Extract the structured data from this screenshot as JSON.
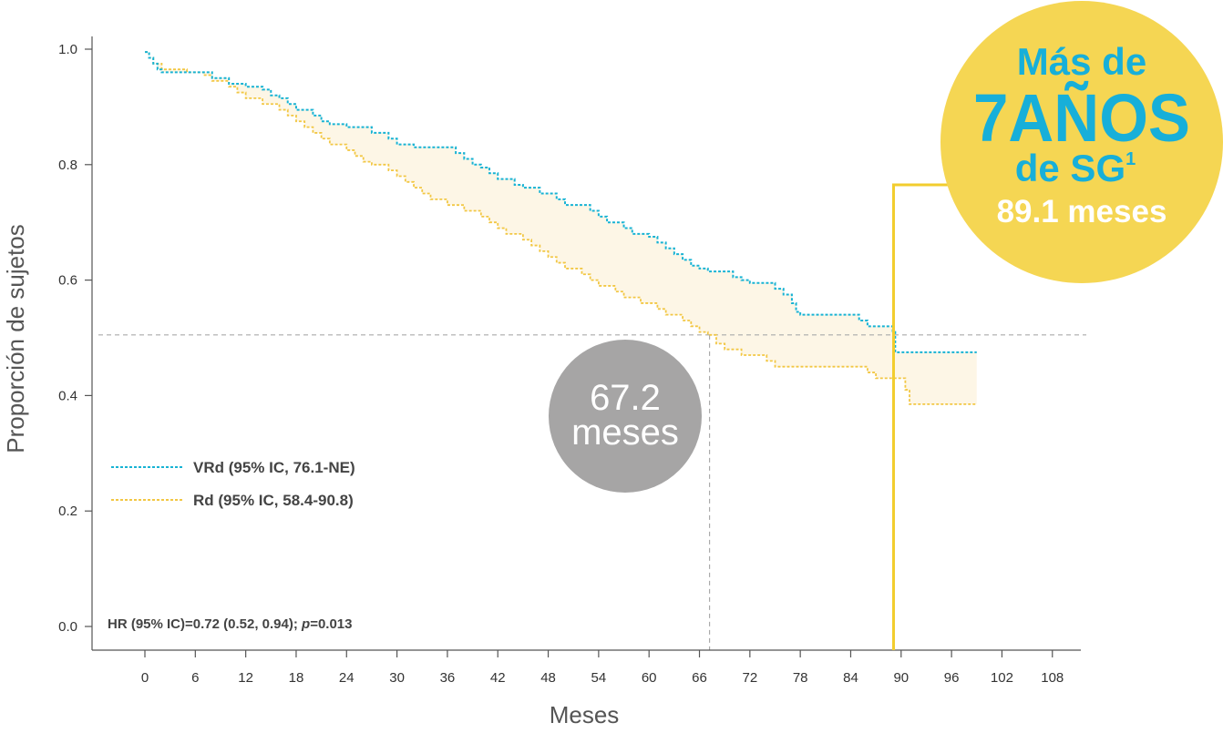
{
  "colors": {
    "vrd": "#18b3d4",
    "rd": "#f2c744",
    "band": "#fdf6e6",
    "median_line": "#aaaaaa",
    "yellow_bracket": "#f2cd2e",
    "grey_bubble": "#a6a5a5",
    "yellow_bubble": "#f5d653",
    "callout_text": "#17afd9",
    "axis": "#555555"
  },
  "chart_data": {
    "type": "line",
    "title": "",
    "xlabel": "Meses",
    "ylabel": "Proporción de sujetos",
    "xlim": [
      -5,
      110
    ],
    "ylim": [
      -0.04,
      1.04
    ],
    "xticks": [
      0,
      6,
      12,
      18,
      24,
      30,
      36,
      42,
      48,
      54,
      60,
      66,
      72,
      78,
      84,
      90,
      96,
      102,
      108
    ],
    "xtick_labels": [
      "0",
      "6",
      "12",
      "18",
      "24",
      "30",
      "36",
      "42",
      "48",
      "54",
      "60",
      "66",
      "72",
      "78",
      "84",
      "90",
      "96",
      "102",
      "108"
    ],
    "yticks": [
      0.0,
      0.2,
      0.4,
      0.6,
      0.8,
      1.0
    ],
    "ytick_labels": [
      "0.0",
      "0.2",
      "0.4",
      "0.6",
      "0.8",
      "1.0"
    ],
    "legend_position": "middle-left",
    "series": [
      {
        "name": "VRd",
        "legend_label": "VRd (95% IC, 76.1-NE)",
        "line_style": "dotted",
        "points": [
          [
            0,
            0.995
          ],
          [
            0.5,
            0.985
          ],
          [
            1,
            0.975
          ],
          [
            1.5,
            0.965
          ],
          [
            2,
            0.96
          ],
          [
            6,
            0.96
          ],
          [
            8,
            0.95
          ],
          [
            10,
            0.94
          ],
          [
            12,
            0.935
          ],
          [
            14,
            0.93
          ],
          [
            15,
            0.92
          ],
          [
            16,
            0.915
          ],
          [
            17,
            0.905
          ],
          [
            18,
            0.895
          ],
          [
            20,
            0.885
          ],
          [
            21,
            0.875
          ],
          [
            22,
            0.87
          ],
          [
            24,
            0.865
          ],
          [
            27,
            0.855
          ],
          [
            29,
            0.845
          ],
          [
            30,
            0.835
          ],
          [
            32,
            0.83
          ],
          [
            36,
            0.83
          ],
          [
            37,
            0.82
          ],
          [
            38,
            0.81
          ],
          [
            39,
            0.8
          ],
          [
            40,
            0.795
          ],
          [
            41,
            0.785
          ],
          [
            42,
            0.775
          ],
          [
            44,
            0.765
          ],
          [
            45,
            0.76
          ],
          [
            47,
            0.75
          ],
          [
            49,
            0.74
          ],
          [
            50,
            0.73
          ],
          [
            53,
            0.72
          ],
          [
            54,
            0.71
          ],
          [
            55,
            0.7
          ],
          [
            57,
            0.69
          ],
          [
            58,
            0.68
          ],
          [
            60,
            0.675
          ],
          [
            61,
            0.665
          ],
          [
            62,
            0.655
          ],
          [
            63,
            0.645
          ],
          [
            64,
            0.635
          ],
          [
            65,
            0.625
          ],
          [
            66,
            0.62
          ],
          [
            67,
            0.615
          ],
          [
            70,
            0.605
          ],
          [
            71,
            0.6
          ],
          [
            72,
            0.595
          ],
          [
            75,
            0.585
          ],
          [
            76,
            0.575
          ],
          [
            77,
            0.56
          ],
          [
            77.5,
            0.545
          ],
          [
            78,
            0.54
          ],
          [
            81,
            0.54
          ],
          [
            85,
            0.53
          ],
          [
            86,
            0.52
          ],
          [
            89,
            0.51
          ],
          [
            89.3,
            0.475
          ],
          [
            99,
            0.475
          ]
        ]
      },
      {
        "name": "Rd",
        "legend_label": "Rd (95% IC, 58.4-90.8)",
        "line_style": "dotted",
        "points": [
          [
            0,
            0.995
          ],
          [
            0.5,
            0.985
          ],
          [
            1,
            0.975
          ],
          [
            2,
            0.965
          ],
          [
            5,
            0.96
          ],
          [
            7,
            0.955
          ],
          [
            8,
            0.945
          ],
          [
            10,
            0.935
          ],
          [
            11,
            0.925
          ],
          [
            12,
            0.915
          ],
          [
            14,
            0.905
          ],
          [
            16,
            0.895
          ],
          [
            17,
            0.885
          ],
          [
            18,
            0.875
          ],
          [
            19,
            0.865
          ],
          [
            20,
            0.855
          ],
          [
            21,
            0.845
          ],
          [
            22,
            0.835
          ],
          [
            24,
            0.825
          ],
          [
            25,
            0.815
          ],
          [
            26,
            0.805
          ],
          [
            27,
            0.8
          ],
          [
            29,
            0.79
          ],
          [
            30,
            0.78
          ],
          [
            31,
            0.77
          ],
          [
            32,
            0.76
          ],
          [
            33,
            0.75
          ],
          [
            34,
            0.74
          ],
          [
            36,
            0.73
          ],
          [
            38,
            0.72
          ],
          [
            40,
            0.71
          ],
          [
            41,
            0.7
          ],
          [
            42,
            0.69
          ],
          [
            43,
            0.68
          ],
          [
            45,
            0.67
          ],
          [
            46,
            0.66
          ],
          [
            47,
            0.65
          ],
          [
            48,
            0.64
          ],
          [
            49,
            0.63
          ],
          [
            50,
            0.62
          ],
          [
            52,
            0.61
          ],
          [
            53,
            0.6
          ],
          [
            54,
            0.59
          ],
          [
            56,
            0.58
          ],
          [
            57,
            0.57
          ],
          [
            59,
            0.56
          ],
          [
            61,
            0.55
          ],
          [
            62,
            0.54
          ],
          [
            64,
            0.53
          ],
          [
            65,
            0.52
          ],
          [
            66,
            0.51
          ],
          [
            67,
            0.505
          ],
          [
            68,
            0.49
          ],
          [
            69,
            0.48
          ],
          [
            71,
            0.47
          ],
          [
            74,
            0.46
          ],
          [
            75,
            0.45
          ],
          [
            78,
            0.45
          ],
          [
            86,
            0.44
          ],
          [
            87,
            0.43
          ],
          [
            90,
            0.43
          ],
          [
            90.5,
            0.41
          ],
          [
            91,
            0.385
          ],
          [
            99,
            0.385
          ]
        ]
      }
    ],
    "annotations": {
      "median_level": 0.505,
      "median_rd_months": 67.2,
      "median_vrd_months": 89.1,
      "hr_text_parts": [
        "HR (95% IC)=0.72 (0.52, 0.94); ",
        "p",
        "=0.013"
      ],
      "rd_median_bubble": {
        "line1": "67.2",
        "line2": "meses"
      },
      "vrd_callout": {
        "line1": "Más de",
        "line2": "7AÑOS",
        "line3": "de SG",
        "line3_sup": "1",
        "line4": "89.1 meses"
      }
    }
  }
}
